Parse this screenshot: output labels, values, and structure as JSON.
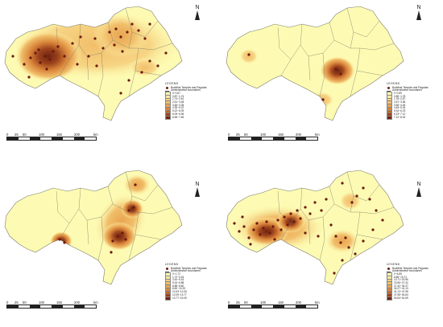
{
  "common": {
    "north_label": "N",
    "scale_ticks": [
      "0",
      "25",
      "50",
      "100",
      "150",
      "200"
    ],
    "scale_unit": "km",
    "legend_title": "LEGEND",
    "legend_point_label": "Buddhist Temples and Pagodas",
    "legend_line_label": "Administrative boundaries",
    "colors": {
      "class1": "#fdfbb3",
      "class2": "#fce9a0",
      "class3": "#f7d483",
      "class4": "#f1be6a",
      "class5": "#e8a551",
      "class6": "#d9853b",
      "class7": "#c2652a",
      "class8": "#9d431c",
      "class9": "#6e2410",
      "point": "#6b1a0e",
      "boundary": "#7a7a6a"
    }
  },
  "panels": [
    {
      "legend_classes": [
        "0~0.87",
        "0.87~1.74",
        "1.74~2.61",
        "2.61~3.48",
        "3.48~4.35",
        "4.35~5.22",
        "5.22~6.09",
        "6.09~6.96",
        "6.96~7.83"
      ]
    },
    {
      "legend_classes": [
        "0~0.89",
        "0.89~1.78",
        "1.78~2.67",
        "2.67~3.56",
        "3.56~4.45",
        "4.45~5.34",
        "5.34~6.23",
        "6.23~7.12",
        "7.12~8.00"
      ]
    },
    {
      "legend_classes": [
        "0~1.72",
        "1.72~3.44",
        "3.44~5.16",
        "5.16~6.88",
        "6.88~8.60",
        "8.60~10.33",
        "10.33~12.05",
        "12.05~13.77",
        "13.77~15.49"
      ]
    },
    {
      "legend_classes": [
        "0~6.85",
        "6.85~13.71",
        "13.71~20.56",
        "20.56~27.42",
        "27.42~34.27",
        "34.27~41.13",
        "41.13~47.98",
        "47.98~54.84",
        "54.84~61.69"
      ]
    }
  ]
}
